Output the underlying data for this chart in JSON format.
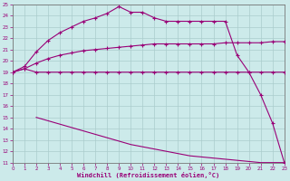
{
  "xlabel": "Windchill (Refroidissement éolien,°C)",
  "xlim": [
    0,
    23
  ],
  "ylim": [
    11,
    25
  ],
  "xticks": [
    0,
    1,
    2,
    3,
    4,
    5,
    6,
    7,
    8,
    9,
    10,
    11,
    12,
    13,
    14,
    15,
    16,
    17,
    18,
    19,
    20,
    21,
    22,
    23
  ],
  "yticks": [
    11,
    12,
    13,
    14,
    15,
    16,
    17,
    18,
    19,
    20,
    21,
    22,
    23,
    24,
    25
  ],
  "bg_color": "#cceaea",
  "grid_color": "#aacccc",
  "line_color": "#990077",
  "line1_x": [
    0,
    1,
    2,
    3,
    4,
    5,
    6,
    7,
    8,
    9,
    10,
    11,
    12,
    13,
    14,
    15,
    16,
    17,
    18,
    19,
    20,
    21,
    22,
    23
  ],
  "line1_y": [
    19.0,
    19.3,
    19.0,
    19.0,
    19.0,
    19.0,
    19.0,
    19.0,
    19.0,
    19.0,
    19.0,
    19.0,
    19.0,
    19.0,
    19.0,
    19.0,
    19.0,
    19.0,
    19.0,
    19.0,
    19.0,
    19.0,
    19.0,
    19.0
  ],
  "line2_x": [
    0,
    1,
    2,
    3,
    4,
    5,
    6,
    7,
    8,
    9,
    10,
    11,
    12,
    13,
    14,
    15,
    16,
    17,
    18,
    19,
    20,
    21,
    22,
    23
  ],
  "line2_y": [
    19.0,
    19.3,
    19.8,
    20.2,
    20.5,
    20.7,
    20.9,
    21.0,
    21.1,
    21.2,
    21.3,
    21.4,
    21.5,
    21.5,
    21.5,
    21.5,
    21.5,
    21.5,
    21.6,
    21.6,
    21.6,
    21.6,
    21.7,
    21.7
  ],
  "line3_x": [
    0,
    1,
    2,
    3,
    4,
    5,
    6,
    7,
    8,
    9,
    10,
    11,
    12,
    13,
    14,
    15,
    16,
    17,
    18,
    19,
    20,
    21,
    22,
    23
  ],
  "line3_y": [
    19.0,
    19.5,
    20.8,
    21.8,
    22.5,
    23.0,
    23.5,
    23.8,
    24.2,
    24.8,
    24.3,
    24.3,
    23.8,
    23.5,
    23.5,
    23.5,
    23.5,
    23.5,
    23.5,
    20.5,
    19.0,
    17.0,
    14.5,
    11.0
  ],
  "line4_x": [
    2,
    3,
    4,
    5,
    6,
    7,
    8,
    9,
    10,
    11,
    12,
    13,
    14,
    15,
    16,
    17,
    18,
    19,
    20,
    21,
    22,
    23
  ],
  "line4_y": [
    15.0,
    14.7,
    14.4,
    14.1,
    13.8,
    13.5,
    13.2,
    12.9,
    12.6,
    12.4,
    12.2,
    12.0,
    11.8,
    11.6,
    11.5,
    11.4,
    11.3,
    11.2,
    11.1,
    11.0,
    11.0,
    11.0
  ]
}
